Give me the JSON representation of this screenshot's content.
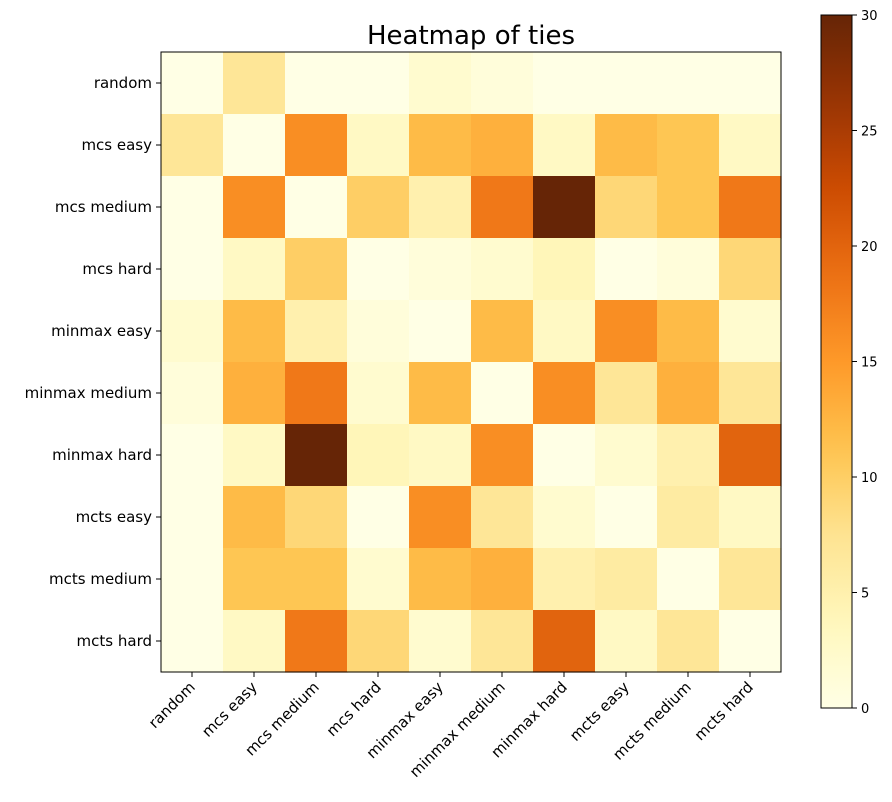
{
  "chart_data": {
    "type": "heatmap",
    "title": "Heatmap of ties",
    "xlabel": "",
    "ylabel": "",
    "x_labels": [
      "random",
      "mcs easy",
      "mcs medium",
      "mcs hard",
      "minmax easy",
      "minmax medium",
      "minmax hard",
      "mcts easy",
      "mcts medium",
      "mcts hard"
    ],
    "y_labels": [
      "random",
      "mcs easy",
      "mcs medium",
      "mcs hard",
      "minmax easy",
      "minmax medium",
      "minmax hard",
      "mcts easy",
      "mcts medium",
      "mcts hard"
    ],
    "values": [
      [
        0,
        7,
        0,
        0,
        2,
        1,
        0,
        0,
        0,
        0
      ],
      [
        7,
        0,
        16,
        3,
        12,
        13,
        3,
        12,
        11,
        3
      ],
      [
        0,
        16,
        0,
        10,
        5,
        18,
        30,
        9,
        11,
        18
      ],
      [
        0,
        3,
        10,
        0,
        1,
        2,
        4,
        0,
        1,
        9
      ],
      [
        2,
        12,
        5,
        1,
        0,
        12,
        3,
        16,
        12,
        2
      ],
      [
        1,
        13,
        18,
        2,
        12,
        0,
        16,
        7,
        13,
        7
      ],
      [
        0,
        3,
        30,
        4,
        3,
        16,
        0,
        2,
        5,
        20
      ],
      [
        0,
        12,
        9,
        0,
        16,
        7,
        2,
        0,
        6,
        3
      ],
      [
        0,
        11,
        11,
        2,
        12,
        13,
        5,
        6,
        0,
        7
      ],
      [
        0,
        3,
        18,
        9,
        2,
        7,
        20,
        3,
        7,
        0
      ]
    ],
    "colormap": "YlOrBr",
    "colorbar": {
      "range": [
        0,
        30
      ],
      "ticks": [
        "0",
        "5",
        "10",
        "15",
        "20",
        "25",
        "30"
      ]
    },
    "grid": false
  }
}
